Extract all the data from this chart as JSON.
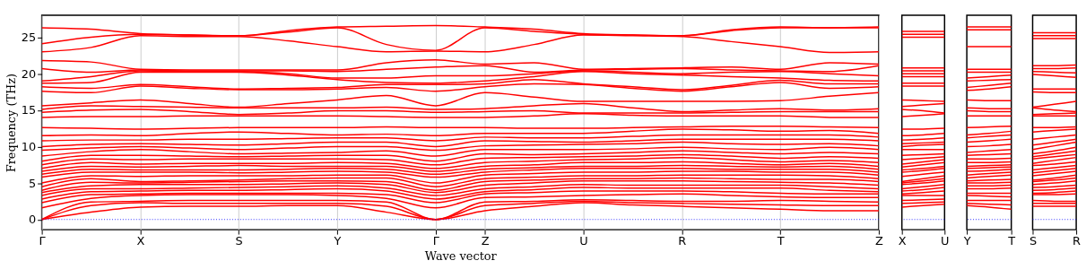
{
  "chart_data": [
    {
      "type": "line",
      "xlabel": "Wave vector",
      "ylabel": "Frequency (THz)",
      "color": "#ff0000",
      "grid": "x",
      "categories": [
        "Γ",
        null,
        "X",
        null,
        "S",
        null,
        "Y",
        null,
        "Γ",
        "Z",
        null,
        "U",
        null,
        "R",
        null,
        "T",
        null,
        "Z"
      ],
      "ylim": [
        -1.4,
        28
      ],
      "yticks": [
        0,
        5,
        10,
        15,
        20,
        25
      ],
      "ref_lines": [
        {
          "axis": "y",
          "value": 0,
          "color": "#0000ff",
          "line_style": "dotted"
        }
      ],
      "series": [
        {
          "values": [
            0,
            1.0,
            1.7,
            1.8,
            1.8,
            1.9,
            1.9,
            1.0,
            0,
            1.2,
            1.8,
            2.3,
            2.0,
            1.8,
            1.6,
            1.4,
            1.2,
            1.2
          ]
        },
        {
          "values": [
            0,
            1.9,
            2.3,
            2.2,
            2.2,
            2.2,
            2.2,
            1.8,
            0,
            1.9,
            2.2,
            2.5,
            2.3,
            2.2,
            2.1,
            2.0,
            1.9,
            1.9
          ]
        },
        {
          "values": [
            0,
            2.4,
            2.5,
            2.6,
            2.6,
            2.6,
            2.6,
            2.4,
            0,
            2.4,
            2.5,
            2.7,
            2.6,
            2.5,
            2.5,
            2.6,
            2.5,
            2.4
          ]
        },
        {
          "values": [
            1.6,
            2.9,
            3.3,
            3.4,
            3.4,
            3.4,
            3.3,
            2.9,
            1.6,
            3.0,
            3.1,
            3.3,
            3.4,
            3.5,
            3.3,
            3.1,
            3.0,
            3.0
          ]
        },
        {
          "values": [
            2.3,
            3.4,
            3.5,
            3.6,
            3.6,
            3.6,
            3.6,
            3.4,
            2.3,
            3.5,
            3.7,
            3.9,
            3.9,
            3.9,
            3.8,
            3.6,
            3.5,
            3.5
          ]
        },
        {
          "values": [
            2.8,
            3.8,
            3.9,
            4.0,
            4.0,
            4.1,
            4.2,
            3.9,
            2.8,
            3.8,
            4.1,
            4.4,
            4.3,
            4.3,
            4.3,
            4.3,
            4.0,
            3.8
          ]
        },
        {
          "values": [
            3.3,
            4.2,
            4.2,
            4.3,
            4.4,
            4.5,
            4.6,
            4.3,
            3.3,
            4.2,
            4.5,
            4.8,
            4.7,
            4.7,
            4.7,
            4.7,
            4.5,
            4.2
          ]
        },
        {
          "values": [
            3.7,
            4.6,
            4.8,
            4.8,
            4.8,
            4.9,
            5.0,
            4.8,
            3.7,
            4.7,
            5.0,
            5.3,
            5.3,
            5.3,
            5.2,
            5.1,
            5.0,
            4.7
          ]
        },
        {
          "values": [
            4.0,
            5.1,
            5.0,
            5.1,
            5.2,
            5.3,
            5.3,
            5.2,
            4.0,
            5.2,
            5.4,
            5.6,
            5.6,
            5.7,
            5.6,
            5.5,
            5.5,
            5.2
          ]
        },
        {
          "values": [
            4.5,
            5.6,
            5.2,
            5.3,
            5.4,
            5.6,
            5.7,
            5.7,
            4.5,
            5.6,
            5.8,
            6.0,
            6.0,
            6.1,
            6.1,
            6.1,
            6.0,
            5.6
          ]
        },
        {
          "values": [
            5.0,
            6.0,
            5.9,
            6.0,
            6.0,
            6.0,
            6.1,
            6.1,
            5.0,
            6.1,
            6.3,
            6.5,
            6.5,
            6.6,
            6.6,
            6.5,
            6.5,
            6.1
          ]
        },
        {
          "values": [
            5.8,
            6.5,
            6.5,
            6.5,
            6.4,
            6.5,
            6.6,
            6.5,
            5.8,
            6.5,
            6.8,
            7.0,
            7.0,
            7.0,
            6.9,
            6.9,
            6.9,
            6.5
          ]
        },
        {
          "values": [
            6.2,
            6.9,
            6.8,
            6.8,
            6.8,
            6.9,
            7.0,
            6.9,
            6.2,
            6.9,
            7.1,
            7.3,
            7.3,
            7.4,
            7.3,
            7.2,
            7.3,
            6.9
          ]
        },
        {
          "values": [
            6.6,
            7.3,
            7.2,
            7.3,
            7.4,
            7.3,
            7.3,
            7.3,
            6.6,
            7.3,
            7.5,
            7.8,
            7.8,
            7.9,
            7.7,
            7.5,
            7.7,
            7.3
          ]
        },
        {
          "values": [
            7.0,
            7.8,
            7.6,
            7.7,
            7.7,
            7.7,
            7.8,
            7.7,
            7.0,
            7.8,
            8.0,
            8.2,
            8.3,
            8.5,
            8.2,
            7.9,
            8.1,
            7.8
          ]
        },
        {
          "values": [
            7.5,
            8.3,
            8.2,
            8.3,
            8.3,
            8.3,
            8.3,
            8.2,
            7.5,
            8.4,
            8.5,
            8.6,
            8.7,
            8.9,
            8.7,
            8.4,
            8.6,
            8.4
          ]
        },
        {
          "values": [
            8.0,
            8.8,
            8.8,
            8.7,
            8.6,
            8.7,
            8.8,
            8.8,
            8.0,
            9.0,
            8.9,
            9.0,
            9.2,
            9.4,
            9.2,
            9.0,
            9.2,
            9.0
          ]
        },
        {
          "values": [
            8.7,
            9.3,
            9.6,
            9.3,
            9.0,
            9.1,
            9.2,
            9.4,
            8.7,
            9.6,
            9.6,
            9.6,
            9.7,
            9.9,
            9.7,
            9.6,
            9.9,
            9.6
          ]
        },
        {
          "values": [
            9.5,
            9.8,
            10.0,
            9.8,
            9.6,
            9.8,
            10.0,
            10.0,
            9.5,
            10.1,
            10.2,
            10.3,
            10.4,
            10.6,
            10.4,
            10.3,
            10.4,
            10.1
          ]
        },
        {
          "values": [
            10.0,
            10.3,
            10.4,
            10.3,
            10.2,
            10.4,
            10.6,
            10.6,
            10.0,
            10.8,
            10.7,
            10.6,
            10.8,
            11.0,
            11.0,
            11.0,
            11.0,
            10.8
          ]
        },
        {
          "values": [
            10.8,
            10.9,
            10.9,
            11.0,
            11.0,
            11.1,
            11.2,
            11.2,
            10.8,
            11.3,
            11.2,
            11.2,
            11.4,
            11.6,
            11.6,
            11.6,
            11.6,
            11.3
          ]
        },
        {
          "values": [
            11.5,
            11.6,
            11.5,
            11.8,
            12.0,
            11.8,
            11.6,
            11.7,
            11.5,
            11.8,
            11.8,
            11.8,
            12.1,
            12.4,
            12.3,
            12.1,
            12.2,
            11.8
          ]
        },
        {
          "values": [
            12.6,
            12.5,
            12.4,
            12.5,
            12.6,
            12.6,
            12.6,
            12.7,
            12.6,
            12.6,
            12.5,
            12.5,
            12.6,
            12.7,
            12.8,
            12.8,
            12.7,
            12.6
          ]
        },
        {
          "values": [
            14.0,
            14.1,
            14.1,
            14.2,
            14.2,
            14.2,
            14.2,
            14.1,
            14.0,
            14.0,
            14.2,
            14.5,
            14.3,
            14.2,
            14.2,
            14.2,
            14.0,
            14.0
          ]
        },
        {
          "values": [
            14.7,
            15.0,
            15.1,
            14.8,
            14.4,
            14.6,
            14.9,
            14.9,
            14.7,
            14.8,
            14.9,
            14.6,
            14.6,
            14.6,
            14.7,
            14.8,
            14.8,
            14.8
          ]
        },
        {
          "values": [
            15.1,
            15.6,
            15.5,
            15.4,
            15.3,
            15.3,
            15.3,
            15.4,
            15.1,
            15.2,
            15.6,
            15.9,
            15.3,
            14.8,
            15.0,
            15.2,
            15.0,
            15.2
          ]
        },
        {
          "values": [
            15.6,
            16.0,
            16.4,
            15.9,
            15.4,
            15.9,
            16.4,
            17.0,
            15.6,
            17.4,
            16.8,
            16.2,
            16.2,
            16.2,
            16.2,
            16.3,
            16.9,
            17.4
          ]
        },
        {
          "values": [
            17.6,
            17.4,
            18.3,
            18.0,
            17.8,
            17.8,
            17.9,
            18.1,
            17.6,
            18.2,
            18.6,
            18.5,
            18.0,
            17.6,
            18.2,
            18.8,
            18.0,
            18.2
          ]
        },
        {
          "values": [
            18.2,
            18.0,
            18.5,
            18.2,
            17.9,
            18.0,
            18.1,
            18.5,
            18.5,
            18.6,
            19.2,
            18.6,
            18.2,
            17.8,
            18.4,
            19.1,
            18.6,
            18.6
          ]
        },
        {
          "values": [
            18.7,
            18.8,
            20.2,
            20.2,
            20.2,
            19.8,
            19.2,
            18.8,
            18.7,
            19.0,
            19.6,
            20.3,
            20.0,
            19.8,
            19.6,
            19.4,
            19.1,
            19.0
          ]
        },
        {
          "values": [
            19.0,
            19.6,
            20.4,
            20.3,
            20.3,
            20.0,
            19.4,
            19.4,
            19.7,
            19.7,
            20.0,
            20.4,
            20.2,
            20.0,
            20.2,
            20.3,
            20.0,
            19.7
          ]
        },
        {
          "values": [
            20.7,
            20.2,
            20.5,
            20.4,
            20.4,
            20.4,
            20.3,
            20.6,
            20.9,
            21.1,
            20.2,
            20.5,
            20.6,
            20.7,
            20.5,
            20.4,
            20.3,
            21.1
          ]
        },
        {
          "values": [
            21.8,
            21.6,
            20.6,
            20.5,
            20.5,
            20.5,
            20.5,
            21.5,
            21.9,
            21.3,
            21.5,
            20.6,
            20.7,
            20.8,
            20.9,
            20.6,
            21.5,
            21.3
          ]
        },
        {
          "values": [
            23.0,
            23.6,
            25.2,
            25.1,
            25.1,
            24.5,
            23.7,
            23.0,
            23.1,
            23.0,
            24.0,
            25.3,
            25.2,
            25.1,
            24.4,
            23.7,
            22.9,
            23.0
          ]
        },
        {
          "values": [
            24.1,
            25.0,
            25.4,
            25.3,
            25.2,
            25.7,
            26.3,
            24.0,
            23.2,
            26.3,
            25.8,
            25.4,
            25.3,
            25.2,
            25.9,
            26.3,
            26.3,
            26.3
          ]
        },
        {
          "values": [
            26.3,
            26.1,
            25.5,
            25.3,
            25.2,
            25.9,
            26.4,
            26.5,
            26.6,
            26.4,
            26.1,
            25.5,
            25.3,
            25.2,
            26.0,
            26.4,
            26.3,
            26.4
          ]
        }
      ]
    },
    {
      "type": "line",
      "color": "#ff0000",
      "tick_labels": "x",
      "categories": [
        "X",
        null,
        "U"
      ],
      "ylim": [
        -1.4,
        28
      ],
      "yticks": [
        0,
        5,
        10,
        15,
        20,
        25
      ],
      "ref_lines": [
        {
          "axis": "y",
          "value": 0,
          "color": "#0000ff",
          "line_style": "dotted"
        }
      ],
      "series": [
        {
          "values": [
            1.7,
            1.9,
            2.1
          ]
        },
        {
          "values": [
            2.2,
            2.3,
            2.4
          ]
        },
        {
          "values": [
            2.6,
            2.7,
            2.8
          ]
        },
        {
          "values": [
            3.3,
            3.3,
            3.3
          ]
        },
        {
          "values": [
            3.5,
            3.7,
            3.9
          ]
        },
        {
          "values": [
            3.9,
            4.1,
            4.4
          ]
        },
        {
          "values": [
            4.2,
            4.5,
            4.8
          ]
        },
        {
          "values": [
            4.8,
            5.0,
            5.3
          ]
        },
        {
          "values": [
            5.0,
            5.3,
            5.6
          ]
        },
        {
          "values": [
            5.2,
            5.6,
            6.0
          ]
        },
        {
          "values": [
            5.9,
            6.2,
            6.5
          ]
        },
        {
          "values": [
            6.5,
            6.7,
            7.0
          ]
        },
        {
          "values": [
            6.8,
            7.0,
            7.3
          ]
        },
        {
          "values": [
            7.2,
            7.5,
            7.8
          ]
        },
        {
          "values": [
            7.6,
            7.9,
            8.2
          ]
        },
        {
          "values": [
            8.2,
            8.4,
            8.6
          ]
        },
        {
          "values": [
            8.8,
            8.9,
            9.0
          ]
        },
        {
          "values": [
            9.6,
            9.6,
            9.6
          ]
        },
        {
          "values": [
            10.0,
            10.2,
            10.3
          ]
        },
        {
          "values": [
            10.4,
            10.5,
            10.6
          ]
        },
        {
          "values": [
            10.9,
            11.0,
            11.2
          ]
        },
        {
          "values": [
            11.5,
            11.6,
            11.8
          ]
        },
        {
          "values": [
            12.4,
            12.4,
            12.5
          ]
        },
        {
          "values": [
            14.1,
            14.3,
            14.5
          ]
        },
        {
          "values": [
            15.1,
            14.9,
            14.6
          ]
        },
        {
          "values": [
            15.5,
            15.7,
            15.9
          ]
        },
        {
          "values": [
            16.4,
            16.3,
            16.2
          ]
        },
        {
          "values": [
            18.3,
            18.3,
            18.3
          ]
        },
        {
          "values": [
            18.7,
            18.7,
            18.7
          ]
        },
        {
          "values": [
            19.6,
            19.6,
            19.6
          ]
        },
        {
          "values": [
            20.0,
            20.0,
            20.0
          ]
        },
        {
          "values": [
            20.4,
            20.4,
            20.4
          ]
        },
        {
          "values": [
            20.8,
            20.8,
            20.8
          ]
        },
        {
          "values": [
            25.0,
            25.0,
            25.0
          ]
        },
        {
          "values": [
            25.4,
            25.4,
            25.4
          ]
        },
        {
          "values": [
            25.8,
            25.8,
            25.8
          ]
        }
      ]
    },
    {
      "type": "line",
      "color": "#ff0000",
      "tick_labels": "x",
      "categories": [
        "Y",
        null,
        "T"
      ],
      "ylim": [
        -1.4,
        28
      ],
      "yticks": [
        0,
        5,
        10,
        15,
        20,
        25
      ],
      "ref_lines": [
        {
          "axis": "y",
          "value": 0,
          "color": "#0000ff",
          "line_style": "dotted"
        }
      ],
      "series": [
        {
          "values": [
            1.9,
            1.7,
            1.4
          ]
        },
        {
          "values": [
            2.2,
            2.1,
            2.0
          ]
        },
        {
          "values": [
            2.6,
            2.6,
            2.6
          ]
        },
        {
          "values": [
            3.3,
            3.2,
            3.1
          ]
        },
        {
          "values": [
            3.6,
            3.6,
            3.6
          ]
        },
        {
          "values": [
            4.2,
            4.2,
            4.3
          ]
        },
        {
          "values": [
            4.6,
            4.6,
            4.7
          ]
        },
        {
          "values": [
            5.0,
            5.0,
            5.1
          ]
        },
        {
          "values": [
            5.3,
            5.4,
            5.5
          ]
        },
        {
          "values": [
            5.7,
            5.9,
            6.1
          ]
        },
        {
          "values": [
            6.1,
            6.3,
            6.5
          ]
        },
        {
          "values": [
            6.6,
            6.7,
            6.9
          ]
        },
        {
          "values": [
            7.0,
            7.1,
            7.2
          ]
        },
        {
          "values": [
            7.3,
            7.4,
            7.5
          ]
        },
        {
          "values": [
            7.8,
            7.8,
            7.9
          ]
        },
        {
          "values": [
            8.3,
            8.3,
            8.4
          ]
        },
        {
          "values": [
            8.8,
            8.9,
            9.0
          ]
        },
        {
          "values": [
            9.2,
            9.4,
            9.6
          ]
        },
        {
          "values": [
            10.0,
            10.1,
            10.3
          ]
        },
        {
          "values": [
            10.6,
            10.8,
            11.0
          ]
        },
        {
          "values": [
            11.2,
            11.4,
            11.6
          ]
        },
        {
          "values": [
            11.6,
            11.8,
            12.1
          ]
        },
        {
          "values": [
            12.6,
            12.7,
            12.8
          ]
        },
        {
          "values": [
            14.2,
            14.2,
            14.2
          ]
        },
        {
          "values": [
            14.9,
            14.8,
            14.8
          ]
        },
        {
          "values": [
            15.3,
            15.2,
            15.2
          ]
        },
        {
          "values": [
            16.4,
            16.3,
            16.3
          ]
        },
        {
          "values": [
            17.7,
            17.9,
            18.2
          ]
        },
        {
          "values": [
            18.1,
            18.4,
            18.7
          ]
        },
        {
          "values": [
            19.0,
            19.1,
            19.2
          ]
        },
        {
          "values": [
            19.4,
            19.6,
            19.8
          ]
        },
        {
          "values": [
            20.2,
            20.2,
            20.2
          ]
        },
        {
          "values": [
            20.6,
            20.6,
            20.6
          ]
        },
        {
          "values": [
            23.7,
            23.7,
            23.7
          ]
        },
        {
          "values": [
            26.0,
            26.0,
            26.0
          ]
        },
        {
          "values": [
            26.4,
            26.4,
            26.4
          ]
        }
      ]
    },
    {
      "type": "line",
      "color": "#ff0000",
      "tick_labels": "x",
      "categories": [
        "S",
        null,
        "R"
      ],
      "ylim": [
        -1.4,
        28
      ],
      "yticks": [
        0,
        5,
        10,
        15,
        20,
        25
      ],
      "ref_lines": [
        {
          "axis": "y",
          "value": 0,
          "color": "#0000ff",
          "line_style": "dotted"
        }
      ],
      "series": [
        {
          "values": [
            1.8,
            1.8,
            1.8
          ]
        },
        {
          "values": [
            2.2,
            2.2,
            2.2
          ]
        },
        {
          "values": [
            2.6,
            2.5,
            2.5
          ]
        },
        {
          "values": [
            3.4,
            3.4,
            3.5
          ]
        },
        {
          "values": [
            3.6,
            3.7,
            3.9
          ]
        },
        {
          "values": [
            4.0,
            4.1,
            4.3
          ]
        },
        {
          "values": [
            4.4,
            4.5,
            4.7
          ]
        },
        {
          "values": [
            4.8,
            5.0,
            5.3
          ]
        },
        {
          "values": [
            5.2,
            5.4,
            5.7
          ]
        },
        {
          "values": [
            5.4,
            5.7,
            6.1
          ]
        },
        {
          "values": [
            6.0,
            6.3,
            6.6
          ]
        },
        {
          "values": [
            6.4,
            6.7,
            7.0
          ]
        },
        {
          "values": [
            6.8,
            7.1,
            7.4
          ]
        },
        {
          "values": [
            7.4,
            7.6,
            7.9
          ]
        },
        {
          "values": [
            7.7,
            8.1,
            8.5
          ]
        },
        {
          "values": [
            8.3,
            8.6,
            8.9
          ]
        },
        {
          "values": [
            8.6,
            9.0,
            9.4
          ]
        },
        {
          "values": [
            9.0,
            9.4,
            9.9
          ]
        },
        {
          "values": [
            9.6,
            10.1,
            10.6
          ]
        },
        {
          "values": [
            10.2,
            10.6,
            11.0
          ]
        },
        {
          "values": [
            11.0,
            11.3,
            11.6
          ]
        },
        {
          "values": [
            12.0,
            12.2,
            12.4
          ]
        },
        {
          "values": [
            12.6,
            12.6,
            12.7
          ]
        },
        {
          "values": [
            14.2,
            14.2,
            14.2
          ]
        },
        {
          "values": [
            14.4,
            14.5,
            14.6
          ]
        },
        {
          "values": [
            15.3,
            15.0,
            14.8
          ]
        },
        {
          "values": [
            15.4,
            15.8,
            16.2
          ]
        },
        {
          "values": [
            17.5,
            17.4,
            17.4
          ]
        },
        {
          "values": [
            17.9,
            17.9,
            17.9
          ]
        },
        {
          "values": [
            19.9,
            19.7,
            19.5
          ]
        },
        {
          "values": [
            20.3,
            20.2,
            20.1
          ]
        },
        {
          "values": [
            20.7,
            20.7,
            20.8
          ]
        },
        {
          "values": [
            21.1,
            21.1,
            21.2
          ]
        },
        {
          "values": [
            24.8,
            24.8,
            24.8
          ]
        },
        {
          "values": [
            25.2,
            25.2,
            25.2
          ]
        },
        {
          "values": [
            25.6,
            25.6,
            25.6
          ]
        }
      ]
    }
  ]
}
